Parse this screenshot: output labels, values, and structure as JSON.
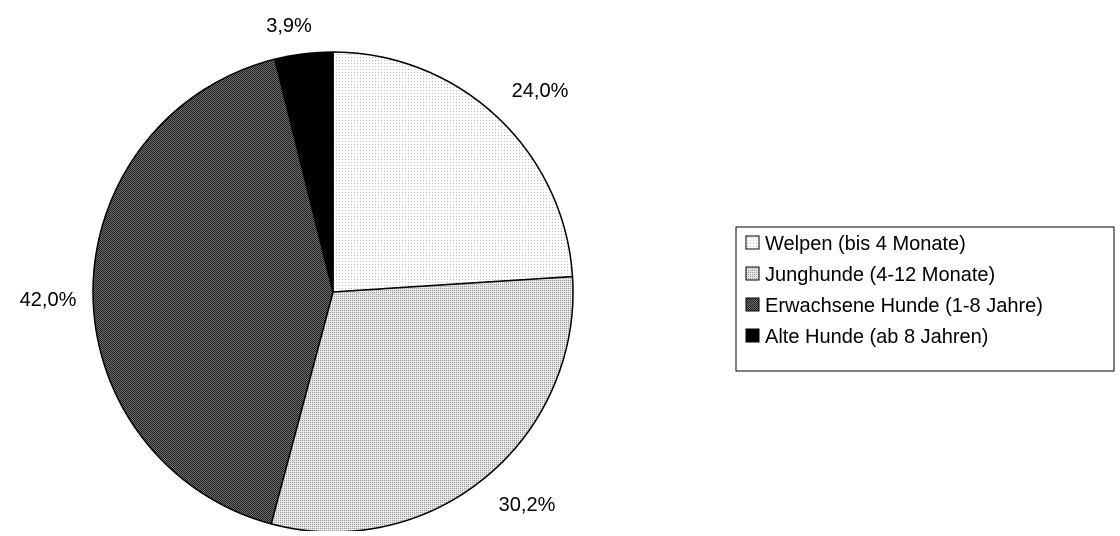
{
  "chart_data": {
    "type": "pie",
    "title": "",
    "categories": [
      "Welpen (bis 4 Monate)",
      "Junghunde (4-12 Monate)",
      "Erwachsene Hunde (1-8 Jahre)",
      "Alte Hunde (ab 8 Jahren)"
    ],
    "values": [
      24.0,
      30.2,
      42.0,
      3.9
    ],
    "value_labels": [
      "24,0%",
      "30,2%",
      "42,0%",
      "3,9%"
    ],
    "legend": {
      "placement": "right",
      "entries": [
        "Welpen (bis 4 Monate)",
        "Junghunde (4-12 Monate)",
        "Erwachsene Hunde (1-8 Jahre)",
        "Alte Hunde (ab 8 Jahren)"
      ]
    },
    "colors": [
      "#f2f2f2",
      "#cfcfcf",
      "#4a4a4a",
      "#000000"
    ],
    "fill_patterns": [
      "light-dots",
      "medium-dots",
      "dense-dots",
      "solid"
    ]
  }
}
